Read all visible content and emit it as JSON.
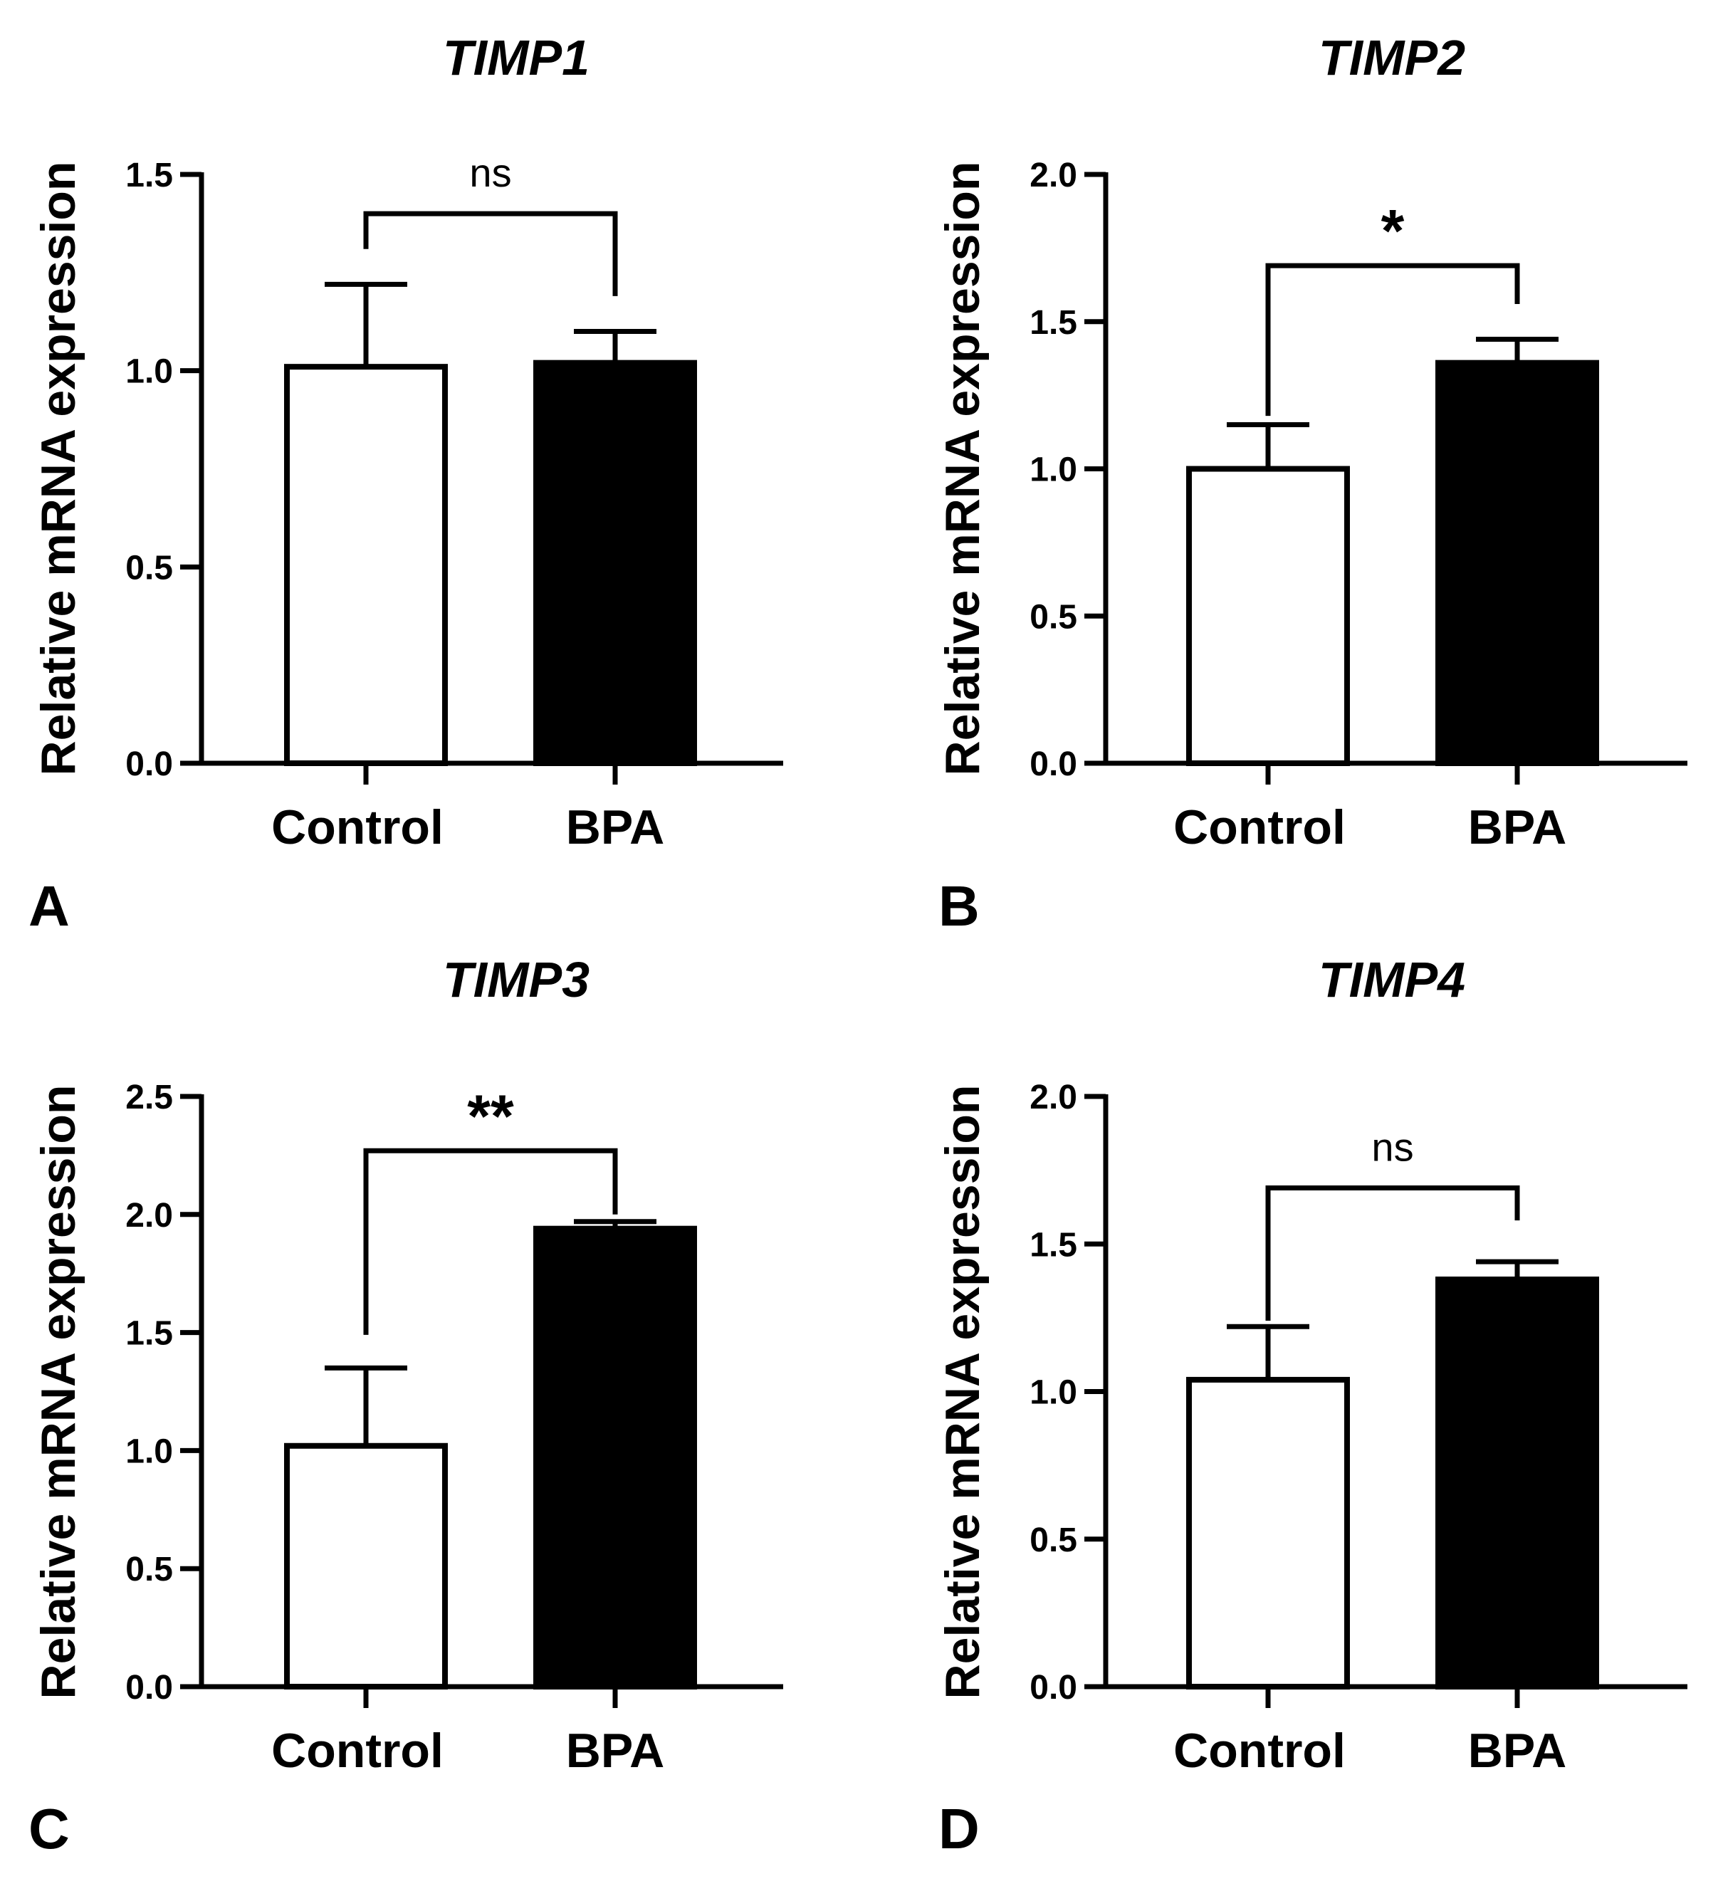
{
  "chart_data": [
    {
      "type": "bar",
      "panel": "A",
      "title": "TIMP1",
      "ylabel": "Relative mRNA expression",
      "xlabel": "",
      "categories": [
        "Control",
        "BPA"
      ],
      "values": [
        1.01,
        1.02
      ],
      "errors": [
        0.21,
        0.08
      ],
      "fills": [
        "#ffffff",
        "#000000"
      ],
      "ylim": [
        0,
        1.5
      ],
      "yticks": [
        0.0,
        0.5,
        1.0,
        1.5
      ],
      "ytick_labels": [
        "0.0",
        "0.5",
        "1.0",
        "1.5"
      ],
      "significance": {
        "label": "ns",
        "bracket_level": 1.4,
        "left_drop": 1.31,
        "right_drop": 1.19
      }
    },
    {
      "type": "bar",
      "panel": "B",
      "title": "TIMP2",
      "ylabel": "Relative mRNA expression",
      "xlabel": "",
      "categories": [
        "Control",
        "BPA"
      ],
      "values": [
        1.0,
        1.36
      ],
      "errors": [
        0.15,
        0.08
      ],
      "fills": [
        "#ffffff",
        "#000000"
      ],
      "ylim": [
        0,
        2.0
      ],
      "yticks": [
        0.0,
        0.5,
        1.0,
        1.5,
        2.0
      ],
      "ytick_labels": [
        "0.0",
        "0.5",
        "1.0",
        "1.5",
        "2.0"
      ],
      "significance": {
        "label": "*",
        "bracket_level": 1.69,
        "left_drop": 1.18,
        "right_drop": 1.56
      }
    },
    {
      "type": "bar",
      "panel": "C",
      "title": "TIMP3",
      "ylabel": "Relative mRNA expression",
      "xlabel": "",
      "categories": [
        "Control",
        "BPA"
      ],
      "values": [
        1.02,
        1.94
      ],
      "errors": [
        0.33,
        0.03
      ],
      "fills": [
        "#ffffff",
        "#000000"
      ],
      "ylim": [
        0,
        2.5
      ],
      "yticks": [
        0.0,
        0.5,
        1.0,
        1.5,
        2.0,
        2.5
      ],
      "ytick_labels": [
        "0.0",
        "0.5",
        "1.0",
        "1.5",
        "2.0",
        "2.5"
      ],
      "significance": {
        "label": "**",
        "bracket_level": 2.27,
        "left_drop": 1.49,
        "right_drop": 2.0
      }
    },
    {
      "type": "bar",
      "panel": "D",
      "title": "TIMP4",
      "ylabel": "Relative mRNA expression",
      "xlabel": "",
      "categories": [
        "Control",
        "BPA"
      ],
      "values": [
        1.04,
        1.38
      ],
      "errors": [
        0.18,
        0.06
      ],
      "fills": [
        "#ffffff",
        "#000000"
      ],
      "ylim": [
        0,
        2.0
      ],
      "yticks": [
        0.0,
        0.5,
        1.0,
        1.5,
        2.0
      ],
      "ytick_labels": [
        "0.0",
        "0.5",
        "1.0",
        "1.5",
        "2.0"
      ],
      "significance": {
        "label": "ns",
        "bracket_level": 1.69,
        "left_drop": 1.24,
        "right_drop": 1.58
      }
    }
  ]
}
